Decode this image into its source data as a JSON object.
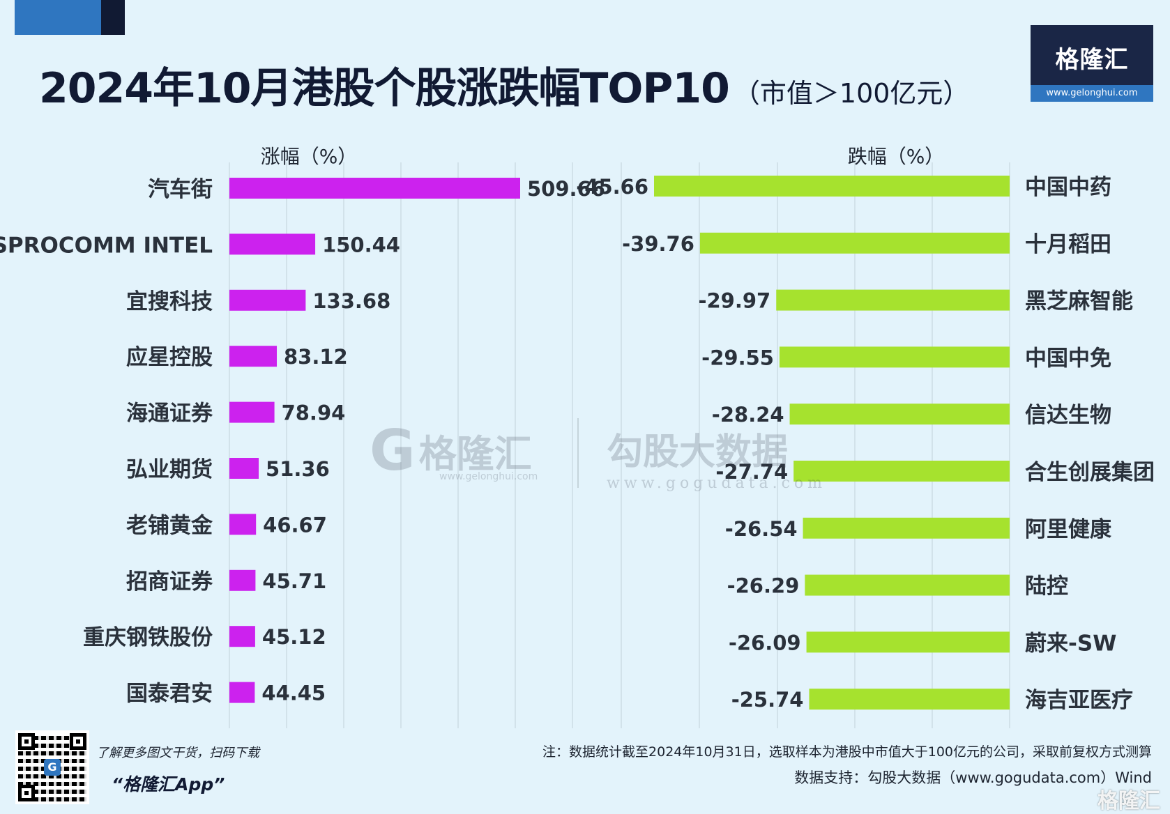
{
  "title": "2024年10月港股个股涨跌幅TOP10",
  "subtitle": "（市值＞100亿元）",
  "brand": {
    "logo_text": "格隆汇",
    "logo_url": "www.gelonghui.com"
  },
  "watermark": {
    "brand_left": "格隆汇",
    "url_left": "www.gelonghui.com",
    "brand_right": "勾股大数据",
    "url_right": "www.gogudata.com"
  },
  "footer": {
    "qr_text": "了解更多图文干货，扫码下载",
    "app_name": "“格隆汇App”",
    "note": "注：数据统计截至2024年10月31日，选取样本为港股中市值大于100亿元的公司，采取前复权方式测算",
    "source": "数据支持：勾股大数据（www.gogudata.com）Wind",
    "corner_logo": "格隆汇"
  },
  "colors": {
    "gain_bar": "#cc22ee",
    "loss_bar": "#a6e22e",
    "title": "#111a33",
    "accent_blue": "#2f76c0",
    "grid": "#c8d6df"
  },
  "chart_data": [
    {
      "type": "bar",
      "orientation": "horizontal",
      "xlabel": "涨幅（%）",
      "categories": [
        "汽车街",
        "SPROCOMM INTEL",
        "宜搜科技",
        "应星控股",
        "海通证券",
        "弘业期货",
        "老铺黄金",
        "招商证券",
        "重庆钢铁股份",
        "国泰君安"
      ],
      "values": [
        509.66,
        150.44,
        133.68,
        83.12,
        78.94,
        51.36,
        46.67,
        45.71,
        45.12,
        44.45
      ],
      "labels": [
        "509.66",
        "150.44",
        "133.68",
        "83.12",
        "78.94",
        "51.36",
        "46.67",
        "45.71",
        "45.12",
        "44.45"
      ],
      "xlim": [
        0,
        600
      ],
      "grid": true
    },
    {
      "type": "bar",
      "orientation": "horizontal",
      "xlabel": "跌幅（%）",
      "categories": [
        "中国中药",
        "十月稻田",
        "黑芝麻智能",
        "中国中免",
        "信达生物",
        "合生创展集团",
        "阿里健康",
        "陆控",
        "蔚来-SW",
        "海吉亚医疗"
      ],
      "values": [
        -45.66,
        -39.76,
        -29.97,
        -29.55,
        -28.24,
        -27.74,
        -26.54,
        -26.29,
        -26.09,
        -25.74
      ],
      "labels": [
        "-45.66",
        "-39.76",
        "-29.97",
        "-29.55",
        "-28.24",
        "-27.74",
        "-26.54",
        "-26.29",
        "-26.09",
        "-25.74"
      ],
      "xlim": [
        -50,
        0
      ],
      "grid": true
    }
  ]
}
